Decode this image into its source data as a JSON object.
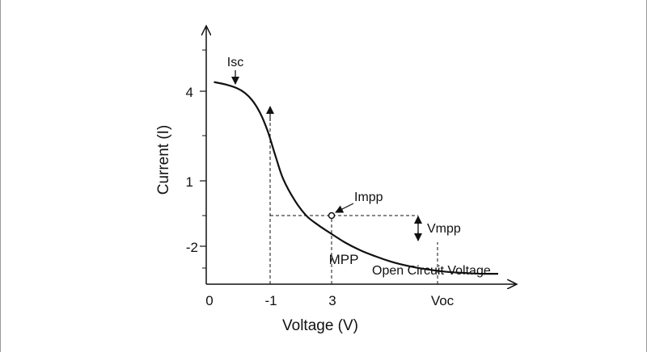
{
  "chart_data": {
    "type": "line",
    "title": "",
    "xlabel": "Voltage (V)",
    "ylabel": "Current (I)",
    "x_tick_labels": [
      "0",
      "-1",
      "3",
      "Voc"
    ],
    "y_tick_labels": [
      "4",
      "1",
      "-2"
    ],
    "grid": false,
    "legend": "none",
    "line_color": "#111111",
    "series": [
      {
        "x": [
          0.2,
          0.5,
          0.8,
          1.0,
          1.2,
          1.4,
          1.6,
          1.8,
          2.0,
          2.3,
          2.6,
          2.9,
          3.2,
          3.6,
          4.0,
          4.4,
          4.8,
          5.2,
          5.6,
          6.0,
          6.4,
          6.8,
          7.2,
          7.6
        ],
        "y": [
          4.3,
          4.22,
          4.1,
          3.95,
          3.7,
          3.3,
          2.7,
          1.9,
          1.15,
          0.45,
          -0.05,
          -0.35,
          -0.6,
          -0.92,
          -1.18,
          -1.38,
          -1.55,
          -1.68,
          -1.78,
          -1.85,
          -1.9,
          -1.93,
          -1.95,
          -1.95
        ]
      }
    ],
    "annotations": {
      "isc": "Isc",
      "impp": "Impp",
      "vmpp": "Vmpp",
      "mpp": "MPP",
      "open_circuit": "Open Circuit Voltage"
    },
    "mpp_point": {
      "x": 3.0,
      "y": -0.45
    },
    "voc_x": 6.4,
    "v1_x": 1.6
  }
}
